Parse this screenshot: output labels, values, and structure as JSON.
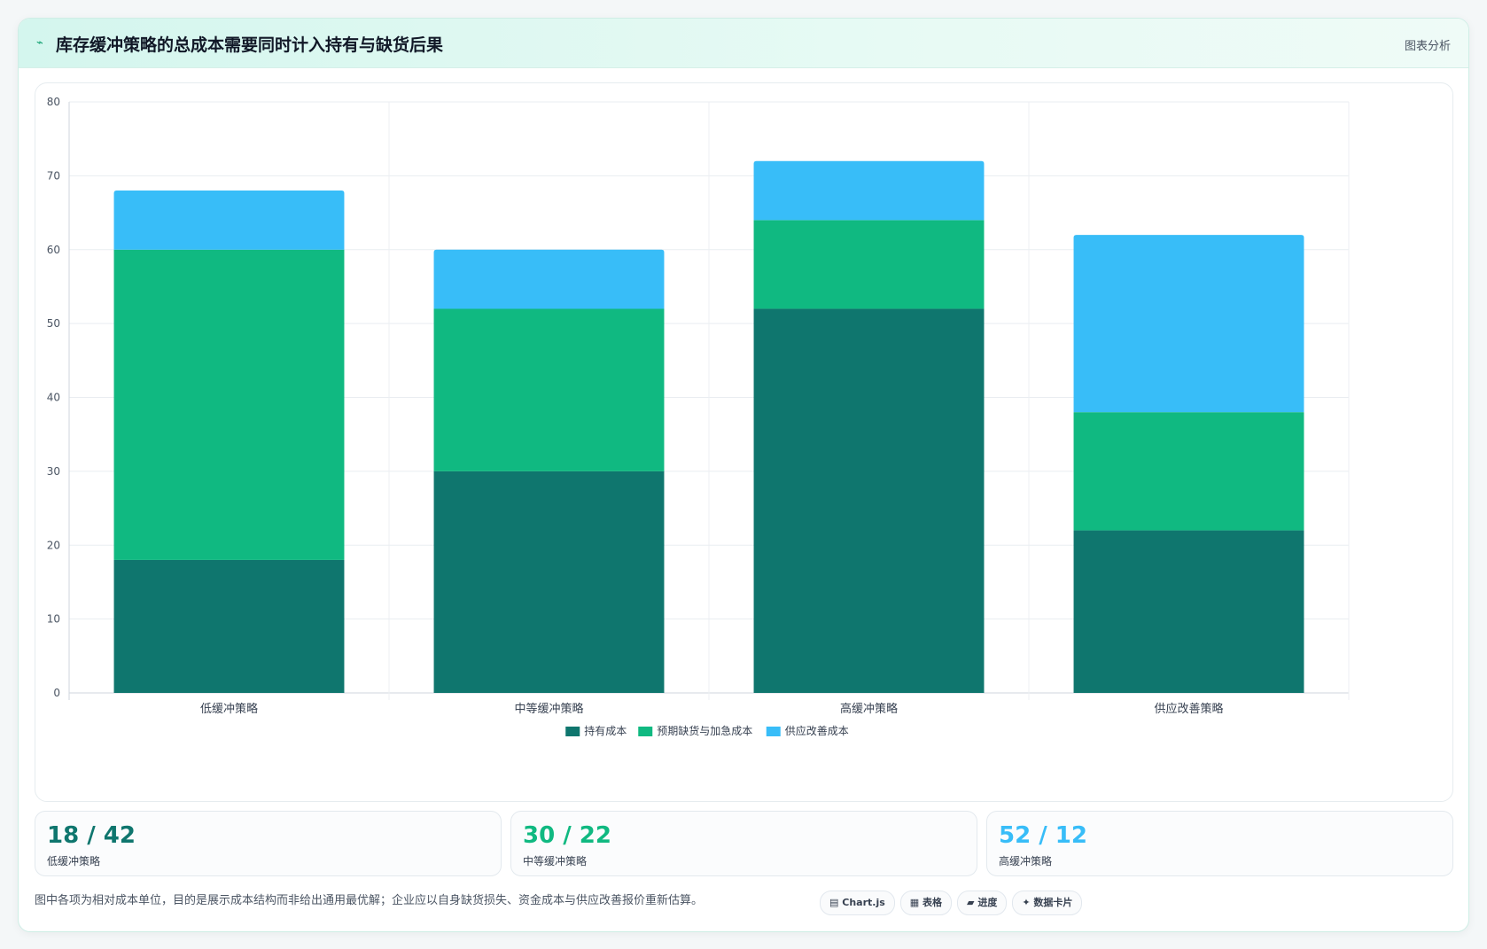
{
  "header": {
    "icon": "trend-icon",
    "title": "库存缓冲策略的总成本需要同时计入持有与缺货后果",
    "tag": "图表分析"
  },
  "chart_data": {
    "type": "bar",
    "stacked": true,
    "categories": [
      "低缓冲策略",
      "中等缓冲策略",
      "高缓冲策略",
      "供应改善策略"
    ],
    "series": [
      {
        "name": "持有成本",
        "color": "#0f766e",
        "values": [
          18,
          30,
          52,
          22
        ]
      },
      {
        "name": "预期缺货与加急成本",
        "color": "#10b981",
        "values": [
          42,
          22,
          12,
          16
        ]
      },
      {
        "name": "供应改善成本",
        "color": "#38bdf8",
        "values": [
          8,
          8,
          8,
          24
        ]
      }
    ],
    "ylim": [
      0,
      80
    ],
    "yticks": [
      0,
      10,
      20,
      30,
      40,
      50,
      60,
      70,
      80
    ],
    "grid": true,
    "legend": "bottom"
  },
  "stats": [
    {
      "value": "18 / 42",
      "label": "低缓冲策略",
      "color": "#0f766e"
    },
    {
      "value": "30 / 22",
      "label": "中等缓冲策略",
      "color": "#10b981"
    },
    {
      "value": "52 / 12",
      "label": "高缓冲策略",
      "color": "#38bdf8"
    }
  ],
  "footer": {
    "note": "图中各项为相对成本单位，目的是展示成本结构而非给出通用最优解；企业应以自身缺货损失、资金成本与供应改善报价重新估算。",
    "pills": [
      {
        "icon": "chart-icon",
        "glyph": "▤",
        "label": "Chart.js"
      },
      {
        "icon": "table-icon",
        "glyph": "▦",
        "label": "表格"
      },
      {
        "icon": "progress-icon",
        "glyph": "▰",
        "label": "进度"
      },
      {
        "icon": "sparkle-icon",
        "glyph": "✦",
        "label": "数据卡片"
      }
    ]
  }
}
